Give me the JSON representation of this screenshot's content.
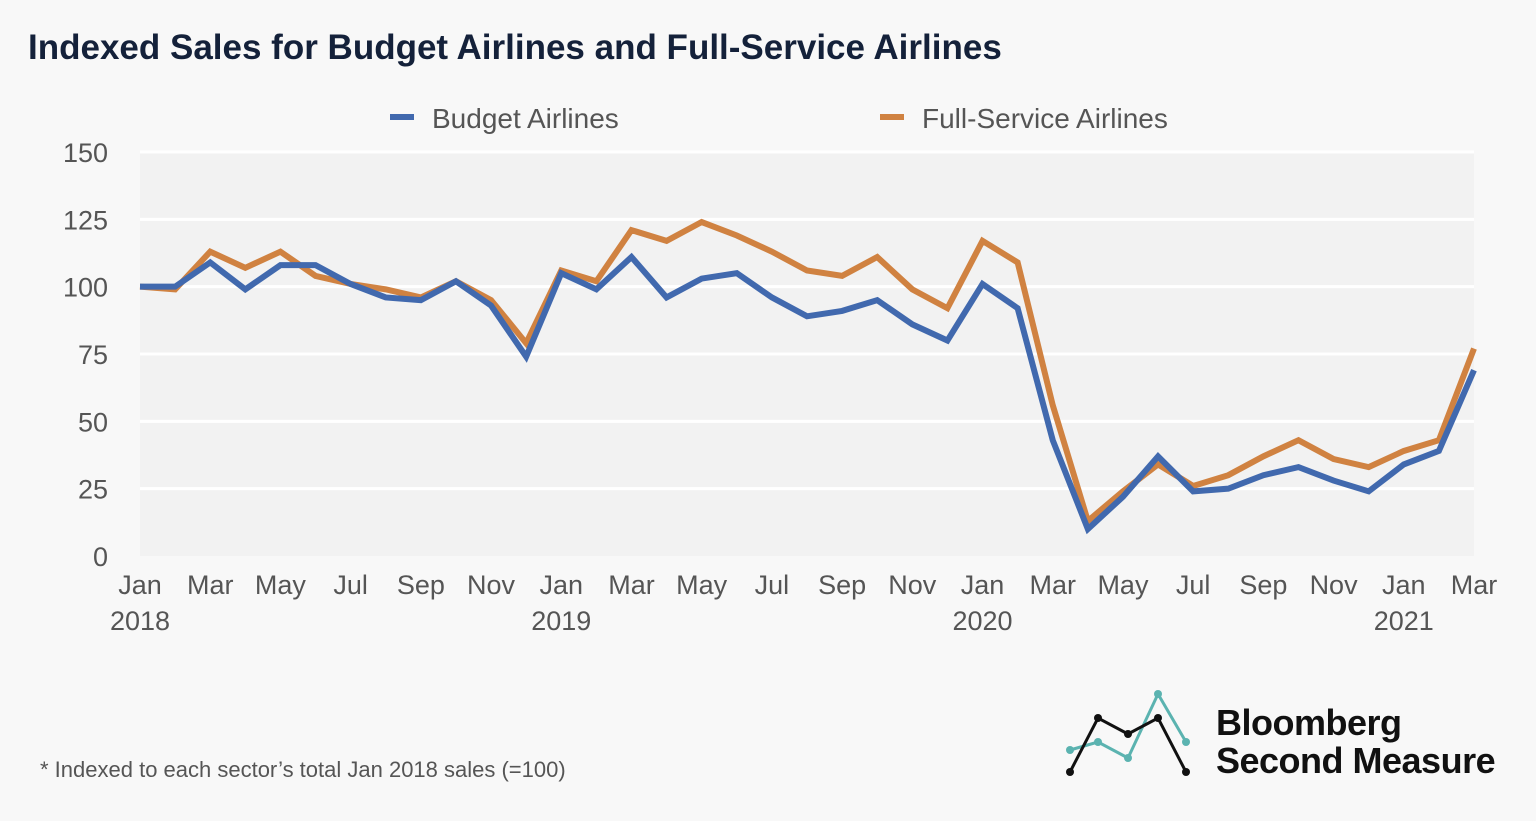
{
  "chart_data": {
    "type": "line",
    "title": "Indexed Sales for Budget Airlines and Full-Service Airlines",
    "x": [
      "Jan 2018",
      "Feb 2018",
      "Mar 2018",
      "Apr 2018",
      "May 2018",
      "Jun 2018",
      "Jul 2018",
      "Aug 2018",
      "Sep 2018",
      "Oct 2018",
      "Nov 2018",
      "Dec 2018",
      "Jan 2019",
      "Feb 2019",
      "Mar 2019",
      "Apr 2019",
      "May 2019",
      "Jun 2019",
      "Jul 2019",
      "Aug 2019",
      "Sep 2019",
      "Oct 2019",
      "Nov 2019",
      "Dec 2019",
      "Jan 2020",
      "Feb 2020",
      "Mar 2020",
      "Apr 2020",
      "May 2020",
      "Jun 2020",
      "Jul 2020",
      "Aug 2020",
      "Sep 2020",
      "Oct 2020",
      "Nov 2020",
      "Dec 2020",
      "Jan 2021",
      "Feb 2021",
      "Mar 2021"
    ],
    "series": [
      {
        "name": "Budget Airlines",
        "color": "#4169ae",
        "values": [
          100,
          100,
          109,
          99,
          108,
          108,
          101,
          96,
          95,
          102,
          93,
          74,
          105,
          99,
          111,
          96,
          103,
          105,
          96,
          89,
          91,
          95,
          86,
          80,
          101,
          92,
          43,
          10,
          22,
          37,
          24,
          25,
          30,
          33,
          28,
          24,
          34,
          39,
          69
        ]
      },
      {
        "name": "Full-Service Airlines",
        "color": "#d08241",
        "values": [
          100,
          99,
          113,
          107,
          113,
          104,
          101,
          99,
          96,
          102,
          95,
          79,
          106,
          102,
          121,
          117,
          124,
          119,
          113,
          106,
          104,
          111,
          99,
          92,
          117,
          109,
          56,
          13,
          24,
          34,
          26,
          30,
          37,
          43,
          36,
          33,
          39,
          43,
          77
        ]
      }
    ],
    "x_tick_labels": [
      {
        "month": "Jan",
        "year": "2018"
      },
      {
        "month": "Mar",
        "year": ""
      },
      {
        "month": "May",
        "year": ""
      },
      {
        "month": "Jul",
        "year": ""
      },
      {
        "month": "Sep",
        "year": ""
      },
      {
        "month": "Nov",
        "year": ""
      },
      {
        "month": "Jan",
        "year": "2019"
      },
      {
        "month": "Mar",
        "year": ""
      },
      {
        "month": "May",
        "year": ""
      },
      {
        "month": "Jul",
        "year": ""
      },
      {
        "month": "Sep",
        "year": ""
      },
      {
        "month": "Nov",
        "year": ""
      },
      {
        "month": "Jan",
        "year": "2020"
      },
      {
        "month": "Mar",
        "year": ""
      },
      {
        "month": "May",
        "year": ""
      },
      {
        "month": "Jul",
        "year": ""
      },
      {
        "month": "Sep",
        "year": ""
      },
      {
        "month": "Nov",
        "year": ""
      },
      {
        "month": "Jan",
        "year": "2021"
      },
      {
        "month": "Mar",
        "year": ""
      }
    ],
    "y_ticks": [
      0,
      25,
      50,
      75,
      100,
      125,
      150
    ],
    "ylim": [
      0,
      150
    ],
    "xlabel": "",
    "ylabel": "",
    "grid": true,
    "legend_position": "top"
  },
  "footnote": "*   Indexed to each sector’s total Jan 2018 sales (=100)",
  "logo": {
    "line1": "Bloomberg",
    "line2": "Second Measure"
  }
}
